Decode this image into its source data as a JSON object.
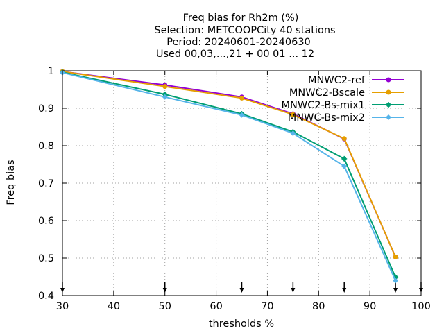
{
  "chart_data": {
    "type": "line",
    "title_lines": [
      "Freq bias  for Rh2m (%)",
      "Selection: METCOOPCity      40 stations",
      "Period: 20240601-20240630",
      "Used 00,03,...,21 + 00 01 ... 12"
    ],
    "xlabel": "thresholds %",
    "ylabel": "Freq bias",
    "xlim": [
      30,
      100
    ],
    "ylim": [
      0.4,
      1.0
    ],
    "x_ticks": [
      "30",
      "40",
      "50",
      "60",
      "70",
      "80",
      "90",
      "100"
    ],
    "y_ticks": [
      "0.4",
      "0.5",
      "0.6",
      "0.7",
      "0.8",
      "0.9",
      "1"
    ],
    "grid": true,
    "legend_position": "top-right",
    "threshold_markers": [
      30,
      50,
      65,
      75,
      85,
      95,
      100
    ],
    "x": [
      30,
      50,
      65,
      75,
      85,
      95
    ],
    "series": [
      {
        "name": "MNWC2-ref",
        "color": "#9400d3",
        "marker": "circle",
        "values": [
          0.998,
          0.962,
          0.93,
          0.885,
          0.818,
          0.503
        ]
      },
      {
        "name": "MNWC2-Bscale",
        "color": "#e69f00",
        "marker": "circle",
        "values": [
          0.998,
          0.958,
          0.927,
          0.883,
          0.819,
          0.503
        ]
      },
      {
        "name": "MNWC2-Bs-mix1",
        "color": "#009e73",
        "marker": "star",
        "values": [
          0.996,
          0.937,
          0.885,
          0.837,
          0.765,
          0.449
        ]
      },
      {
        "name": "MNWC-Bs-mix2",
        "color": "#56b4e9",
        "marker": "diamond",
        "values": [
          0.995,
          0.93,
          0.882,
          0.833,
          0.745,
          0.44
        ]
      }
    ]
  }
}
